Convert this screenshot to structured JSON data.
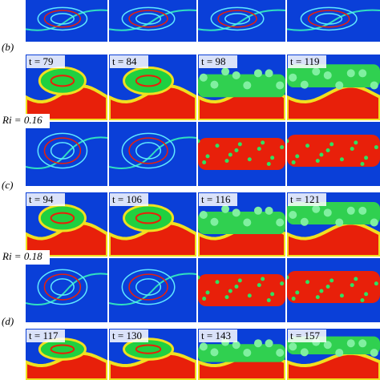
{
  "figure": {
    "sections": [
      {
        "label": "(b)",
        "times": [
          "t = 79",
          "t = 84",
          "t = 98",
          "t = 119"
        ],
        "ri": "Ri = 0.16"
      },
      {
        "label": "(c)",
        "times": [
          "t = 94",
          "t = 106",
          "t = 116",
          "t = 121"
        ],
        "ri": "Ri = 0.18"
      },
      {
        "label": "(d)",
        "times": [
          "t = 117",
          "t = 130",
          "t = 143",
          "t = 157"
        ]
      }
    ]
  }
}
